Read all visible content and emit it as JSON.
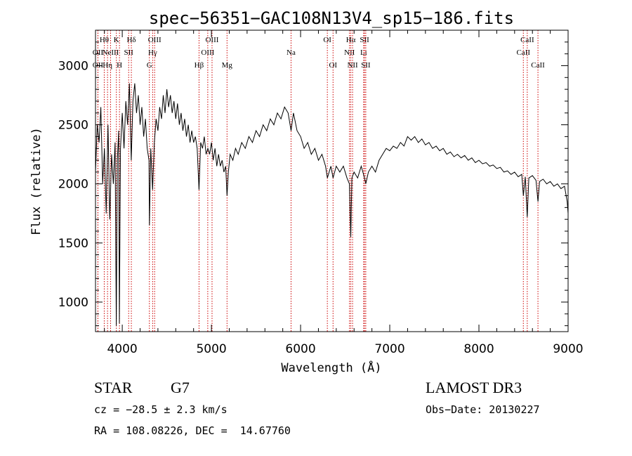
{
  "chart_data": {
    "type": "line",
    "title": "spec−56351−GAC108N13V4_sp15−186.fits",
    "xlabel": "Wavelength (Å)",
    "ylabel": "Flux (relative)",
    "xlim": [
      3700,
      9000
    ],
    "ylim": [
      750,
      3300
    ],
    "x_ticks": [
      4000,
      5000,
      6000,
      7000,
      8000,
      9000
    ],
    "y_ticks": [
      1000,
      1500,
      2000,
      2500,
      3000
    ],
    "series": [
      {
        "name": "flux",
        "points": [
          [
            3700,
            2100
          ],
          [
            3720,
            2500
          ],
          [
            3740,
            2350
          ],
          [
            3760,
            2650
          ],
          [
            3780,
            2000
          ],
          [
            3800,
            2300
          ],
          [
            3820,
            1750
          ],
          [
            3840,
            2500
          ],
          [
            3860,
            1700
          ],
          [
            3880,
            2250
          ],
          [
            3900,
            2000
          ],
          [
            3920,
            2350
          ],
          [
            3933,
            800
          ],
          [
            3945,
            2200
          ],
          [
            3960,
            2450
          ],
          [
            3968,
            820
          ],
          [
            3980,
            2300
          ],
          [
            4000,
            2600
          ],
          [
            4020,
            2300
          ],
          [
            4040,
            2700
          ],
          [
            4060,
            2500
          ],
          [
            4080,
            2850
          ],
          [
            4101,
            2200
          ],
          [
            4120,
            2700
          ],
          [
            4140,
            2850
          ],
          [
            4160,
            2600
          ],
          [
            4180,
            2750
          ],
          [
            4200,
            2500
          ],
          [
            4220,
            2650
          ],
          [
            4240,
            2400
          ],
          [
            4260,
            2550
          ],
          [
            4280,
            2300
          ],
          [
            4300,
            2200
          ],
          [
            4305,
            1650
          ],
          [
            4320,
            2300
          ],
          [
            4340,
            1950
          ],
          [
            4360,
            2350
          ],
          [
            4380,
            2550
          ],
          [
            4400,
            2450
          ],
          [
            4420,
            2650
          ],
          [
            4440,
            2550
          ],
          [
            4460,
            2750
          ],
          [
            4480,
            2600
          ],
          [
            4500,
            2800
          ],
          [
            4520,
            2650
          ],
          [
            4540,
            2750
          ],
          [
            4560,
            2600
          ],
          [
            4580,
            2700
          ],
          [
            4600,
            2550
          ],
          [
            4620,
            2680
          ],
          [
            4640,
            2500
          ],
          [
            4660,
            2600
          ],
          [
            4680,
            2450
          ],
          [
            4700,
            2550
          ],
          [
            4720,
            2400
          ],
          [
            4740,
            2500
          ],
          [
            4760,
            2350
          ],
          [
            4780,
            2450
          ],
          [
            4800,
            2350
          ],
          [
            4820,
            2400
          ],
          [
            4840,
            2300
          ],
          [
            4861,
            1950
          ],
          [
            4880,
            2350
          ],
          [
            4900,
            2300
          ],
          [
            4920,
            2400
          ],
          [
            4940,
            2250
          ],
          [
            4960,
            2300
          ],
          [
            4980,
            2250
          ],
          [
            5000,
            2350
          ],
          [
            5020,
            2200
          ],
          [
            5040,
            2300
          ],
          [
            5060,
            2150
          ],
          [
            5080,
            2250
          ],
          [
            5100,
            2150
          ],
          [
            5120,
            2200
          ],
          [
            5140,
            2100
          ],
          [
            5160,
            2150
          ],
          [
            5175,
            1900
          ],
          [
            5190,
            2100
          ],
          [
            5210,
            2250
          ],
          [
            5240,
            2200
          ],
          [
            5270,
            2300
          ],
          [
            5300,
            2250
          ],
          [
            5340,
            2350
          ],
          [
            5380,
            2300
          ],
          [
            5420,
            2400
          ],
          [
            5460,
            2350
          ],
          [
            5500,
            2450
          ],
          [
            5540,
            2400
          ],
          [
            5580,
            2500
          ],
          [
            5620,
            2450
          ],
          [
            5660,
            2550
          ],
          [
            5700,
            2500
          ],
          [
            5740,
            2600
          ],
          [
            5780,
            2550
          ],
          [
            5820,
            2650
          ],
          [
            5860,
            2600
          ],
          [
            5893,
            2450
          ],
          [
            5920,
            2600
          ],
          [
            5960,
            2450
          ],
          [
            6000,
            2400
          ],
          [
            6040,
            2300
          ],
          [
            6080,
            2350
          ],
          [
            6120,
            2250
          ],
          [
            6160,
            2300
          ],
          [
            6200,
            2200
          ],
          [
            6240,
            2250
          ],
          [
            6280,
            2150
          ],
          [
            6300,
            2050
          ],
          [
            6340,
            2150
          ],
          [
            6364,
            2050
          ],
          [
            6400,
            2150
          ],
          [
            6440,
            2100
          ],
          [
            6480,
            2150
          ],
          [
            6520,
            2050
          ],
          [
            6548,
            2000
          ],
          [
            6563,
            1550
          ],
          [
            6575,
            2050
          ],
          [
            6600,
            2100
          ],
          [
            6640,
            2050
          ],
          [
            6680,
            2150
          ],
          [
            6717,
            2050
          ],
          [
            6731,
            2000
          ],
          [
            6760,
            2100
          ],
          [
            6800,
            2150
          ],
          [
            6840,
            2100
          ],
          [
            6880,
            2200
          ],
          [
            6920,
            2250
          ],
          [
            6960,
            2300
          ],
          [
            7000,
            2280
          ],
          [
            7040,
            2320
          ],
          [
            7080,
            2300
          ],
          [
            7120,
            2350
          ],
          [
            7160,
            2320
          ],
          [
            7200,
            2400
          ],
          [
            7240,
            2370
          ],
          [
            7280,
            2400
          ],
          [
            7320,
            2350
          ],
          [
            7360,
            2380
          ],
          [
            7400,
            2330
          ],
          [
            7440,
            2350
          ],
          [
            7480,
            2300
          ],
          [
            7520,
            2320
          ],
          [
            7560,
            2280
          ],
          [
            7600,
            2300
          ],
          [
            7640,
            2250
          ],
          [
            7680,
            2270
          ],
          [
            7720,
            2230
          ],
          [
            7760,
            2250
          ],
          [
            7800,
            2220
          ],
          [
            7840,
            2240
          ],
          [
            7880,
            2200
          ],
          [
            7920,
            2220
          ],
          [
            7960,
            2180
          ],
          [
            8000,
            2200
          ],
          [
            8040,
            2170
          ],
          [
            8080,
            2180
          ],
          [
            8120,
            2150
          ],
          [
            8160,
            2160
          ],
          [
            8200,
            2130
          ],
          [
            8240,
            2140
          ],
          [
            8280,
            2100
          ],
          [
            8320,
            2110
          ],
          [
            8360,
            2080
          ],
          [
            8400,
            2100
          ],
          [
            8440,
            2060
          ],
          [
            8480,
            2080
          ],
          [
            8498,
            1900
          ],
          [
            8520,
            2060
          ],
          [
            8542,
            1720
          ],
          [
            8560,
            2050
          ],
          [
            8600,
            2070
          ],
          [
            8640,
            2030
          ],
          [
            8662,
            1850
          ],
          [
            8680,
            2020
          ],
          [
            8720,
            2040
          ],
          [
            8760,
            2000
          ],
          [
            8800,
            2020
          ],
          [
            8840,
            1980
          ],
          [
            8880,
            2000
          ],
          [
            8920,
            1960
          ],
          [
            8960,
            1980
          ],
          [
            8990,
            1850
          ],
          [
            9000,
            1750
          ]
        ]
      }
    ],
    "lines": [
      {
        "wave": 3727,
        "label": "OII",
        "row": 2
      },
      {
        "wave": 3727,
        "label": "OII",
        "row": 3
      },
      {
        "wave": 3798,
        "label": "Hθ",
        "row": 1
      },
      {
        "wave": 3835,
        "label": "Hη",
        "row": 3
      },
      {
        "wave": 3869,
        "label": "NeIII",
        "row": 2
      },
      {
        "wave": 3934,
        "label": "K",
        "row": 1
      },
      {
        "wave": 3969,
        "label": "H",
        "row": 3
      },
      {
        "wave": 4072,
        "label": "SII",
        "row": 2
      },
      {
        "wave": 4102,
        "label": "Hδ",
        "row": 1
      },
      {
        "wave": 4304,
        "label": "G",
        "row": 3
      },
      {
        "wave": 4341,
        "label": "Hγ",
        "row": 2
      },
      {
        "wave": 4363,
        "label": "OIII",
        "row": 1
      },
      {
        "wave": 4861,
        "label": "Hβ",
        "row": 3
      },
      {
        "wave": 4959,
        "label": "OIII",
        "row": 2
      },
      {
        "wave": 5007,
        "label": "OIII",
        "row": 1
      },
      {
        "wave": 5175,
        "label": "Mg",
        "row": 3
      },
      {
        "wave": 5893,
        "label": "Na",
        "row": 2
      },
      {
        "wave": 6300,
        "label": "OI",
        "row": 1
      },
      {
        "wave": 6364,
        "label": "OI",
        "row": 3
      },
      {
        "wave": 6548,
        "label": "NII",
        "row": 2
      },
      {
        "wave": 6563,
        "label": "Hα",
        "row": 1
      },
      {
        "wave": 6583,
        "label": "NII",
        "row": 3
      },
      {
        "wave": 6707,
        "label": "Li",
        "row": 2
      },
      {
        "wave": 6717,
        "label": "SII",
        "row": 1
      },
      {
        "wave": 6731,
        "label": "SII",
        "row": 3
      },
      {
        "wave": 8498,
        "label": "CaII",
        "row": 2
      },
      {
        "wave": 8542,
        "label": "CaII",
        "row": 1
      },
      {
        "wave": 8662,
        "label": "CaII",
        "row": 3
      }
    ]
  },
  "info": {
    "object_class": "STAR",
    "subclass": "G7",
    "redshift": "cz = −28.5 ± 2.3 km/s",
    "coords": "RA = 108.08226, DEC =  14.67760",
    "survey": "LAMOST DR3",
    "obs_date": "Obs−Date: 20130227"
  },
  "colors": {
    "line_marker": "#cc0000",
    "spectrum": "#000000",
    "background": "#ffffff"
  }
}
